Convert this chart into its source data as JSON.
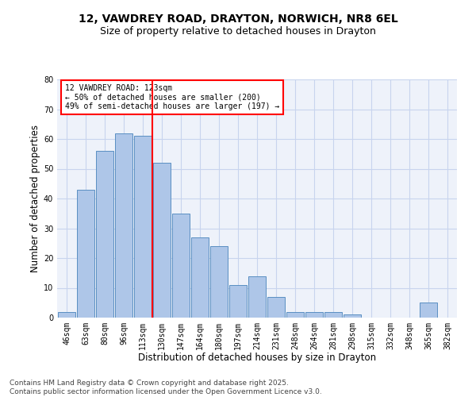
{
  "title1": "12, VAWDREY ROAD, DRAYTON, NORWICH, NR8 6EL",
  "title2": "Size of property relative to detached houses in Drayton",
  "xlabel": "Distribution of detached houses by size in Drayton",
  "ylabel": "Number of detached properties",
  "categories": [
    "46sqm",
    "63sqm",
    "80sqm",
    "96sqm",
    "113sqm",
    "130sqm",
    "147sqm",
    "164sqm",
    "180sqm",
    "197sqm",
    "214sqm",
    "231sqm",
    "248sqm",
    "264sqm",
    "281sqm",
    "298sqm",
    "315sqm",
    "332sqm",
    "348sqm",
    "365sqm",
    "382sqm"
  ],
  "values": [
    2,
    43,
    56,
    62,
    61,
    52,
    35,
    27,
    24,
    11,
    14,
    7,
    2,
    2,
    2,
    1,
    0,
    0,
    0,
    5,
    0
  ],
  "bar_color": "#aec6e8",
  "bar_edge_color": "#5a8fc2",
  "vline_color": "red",
  "annotation_text": "12 VAWDREY ROAD: 123sqm\n← 50% of detached houses are smaller (200)\n49% of semi-detached houses are larger (197) →",
  "annotation_box_color": "white",
  "annotation_box_edge_color": "red",
  "ylim": [
    0,
    80
  ],
  "yticks": [
    0,
    10,
    20,
    30,
    40,
    50,
    60,
    70,
    80
  ],
  "footer": "Contains HM Land Registry data © Crown copyright and database right 2025.\nContains public sector information licensed under the Open Government Licence v3.0.",
  "bg_color": "#eef2fa",
  "grid_color": "#c8d4ee",
  "title_fontsize": 10,
  "subtitle_fontsize": 9,
  "tick_fontsize": 7,
  "label_fontsize": 8.5,
  "footer_fontsize": 6.5,
  "annotation_fontsize": 7
}
